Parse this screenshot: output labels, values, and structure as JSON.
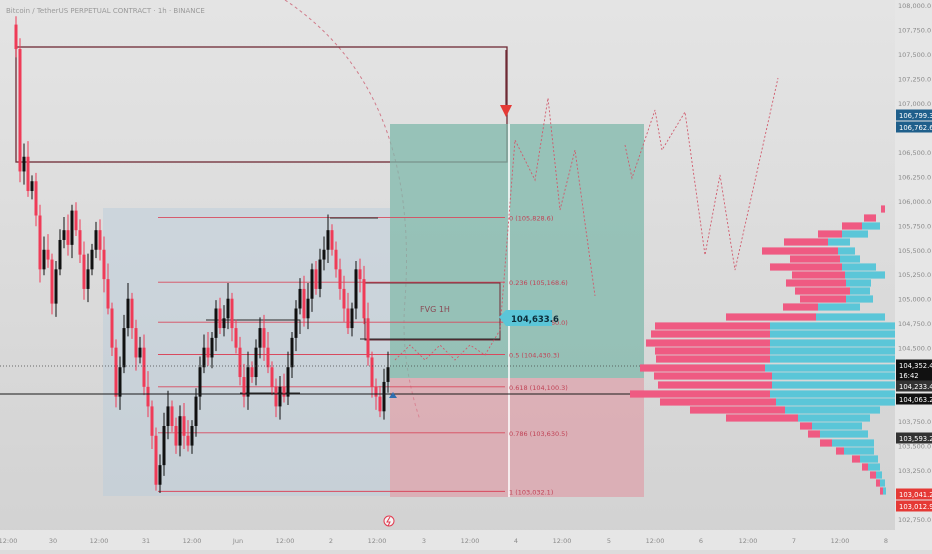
{
  "header": {
    "title": "Bitcoin / TetherUS PERPETUAL CONTRACT · 1h · BINANCE"
  },
  "chart_data": {
    "type": "candlestick",
    "ylim": [
      102750,
      108000
    ],
    "y_ticks": [
      "108,000.0",
      "107,750.0",
      "107,500.0",
      "107,250.0",
      "107,000.0",
      "106,750.0",
      "106,500.0",
      "106,250.0",
      "106,000.0",
      "105,750.0",
      "105,500.0",
      "105,250.0",
      "105,000.0",
      "104,750.0",
      "104,500.0",
      "104,250.0",
      "104,000.0",
      "103,750.0",
      "103,500.0",
      "103,250.0",
      "103,000.0",
      "102,750.0"
    ],
    "x_ticks": [
      "12:00",
      "30",
      "12:00",
      "31",
      "12:00",
      "Jun",
      "12:00",
      "2",
      "12:00",
      "3",
      "12:00",
      "4",
      "12:00",
      "5",
      "12:00",
      "6",
      "12:00",
      "7",
      "12:00",
      "8"
    ],
    "price_badges": [
      {
        "label": "106,799.3",
        "value": 106799.3,
        "color": "#1f5f8b"
      },
      {
        "label": "106,762.6",
        "value": 106762.6,
        "color": "#1f5f8b"
      },
      {
        "label": "104,352.4",
        "value": 104352.4,
        "color": "#111111"
      },
      {
        "label": "16:42",
        "value": 104262,
        "color": "#111111"
      },
      {
        "label": "104,233.4",
        "value": 104233.4,
        "color": "#333333"
      },
      {
        "label": "104,063.2",
        "value": 104063.2,
        "color": "#111111"
      },
      {
        "label": "103,593.2",
        "value": 103593.2,
        "color": "#333333"
      },
      {
        "label": "103,041.2",
        "value": 103041.2,
        "color": "#e53935"
      },
      {
        "label": "103,012.9",
        "value": 103012.9,
        "color": "#e53935"
      }
    ],
    "fib_levels": [
      {
        "ratio": "0",
        "label": "0 (105,828.6)",
        "value": 105828.6
      },
      {
        "ratio": "0.236",
        "label": "0.236 (105,168.6)",
        "value": 105168.6
      },
      {
        "ratio": "0.382",
        "label": "0.382 (104,760.0)",
        "value": 104760.0
      },
      {
        "ratio": "0.5",
        "label": "0.5 (104,430.3)",
        "value": 104430.3
      },
      {
        "ratio": "0.618",
        "label": "0.618 (104,100.3)",
        "value": 104100.3
      },
      {
        "ratio": "0.786",
        "label": "0.786 (103,630.5)",
        "value": 103630.5
      },
      {
        "ratio": "1",
        "label": "1 (103,032.1)",
        "value": 103032.1
      }
    ],
    "annotations": {
      "fvg_label": "FVG 1H",
      "target_label": "104,633.6"
    },
    "colors": {
      "up": "#111111",
      "down": "#ef3b57",
      "tp_zone": "#8fc2b7",
      "sl_zone": "#dc9aa4",
      "profile_up": "#5bc6d8",
      "profile_down": "#ef5a82"
    }
  }
}
